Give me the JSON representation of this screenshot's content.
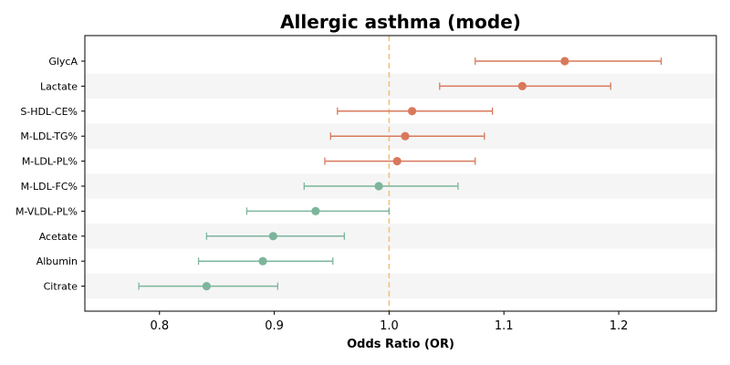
{
  "chart_data": {
    "type": "forest",
    "title": "Allergic asthma (mode)",
    "xlabel": "Odds Ratio (OR)",
    "ylabel": "",
    "xlim": [
      0.735,
      1.285
    ],
    "xticks": [
      0.8,
      0.9,
      1.0,
      1.1,
      1.2
    ],
    "xtick_labels": [
      "0.8",
      "0.9",
      "1.0",
      "1.1",
      "1.2"
    ],
    "reference_line": 1.0,
    "grid": false,
    "row_shading": "alternate",
    "colors": {
      "positive": "#d9795c",
      "negative": "#7db59c",
      "reference_line": "#f2c27a",
      "row_shade": "#f5f5f5"
    },
    "items": [
      {
        "label": "GlycA",
        "or": 1.153,
        "lower": 1.075,
        "upper": 1.237
      },
      {
        "label": "Lactate",
        "or": 1.116,
        "lower": 1.044,
        "upper": 1.193
      },
      {
        "label": "S-HDL-CE%",
        "or": 1.02,
        "lower": 0.955,
        "upper": 1.09
      },
      {
        "label": "M-LDL-TG%",
        "or": 1.014,
        "lower": 0.949,
        "upper": 1.083
      },
      {
        "label": "M-LDL-PL%",
        "or": 1.007,
        "lower": 0.944,
        "upper": 1.075
      },
      {
        "label": "M-LDL-FC%",
        "or": 0.991,
        "lower": 0.926,
        "upper": 1.06
      },
      {
        "label": "M-VLDL-PL%",
        "or": 0.936,
        "lower": 0.876,
        "upper": 1.0
      },
      {
        "label": "Acetate",
        "or": 0.899,
        "lower": 0.841,
        "upper": 0.961
      },
      {
        "label": "Albumin",
        "or": 0.89,
        "lower": 0.834,
        "upper": 0.951
      },
      {
        "label": "Citrate",
        "or": 0.841,
        "lower": 0.782,
        "upper": 0.903
      }
    ]
  }
}
